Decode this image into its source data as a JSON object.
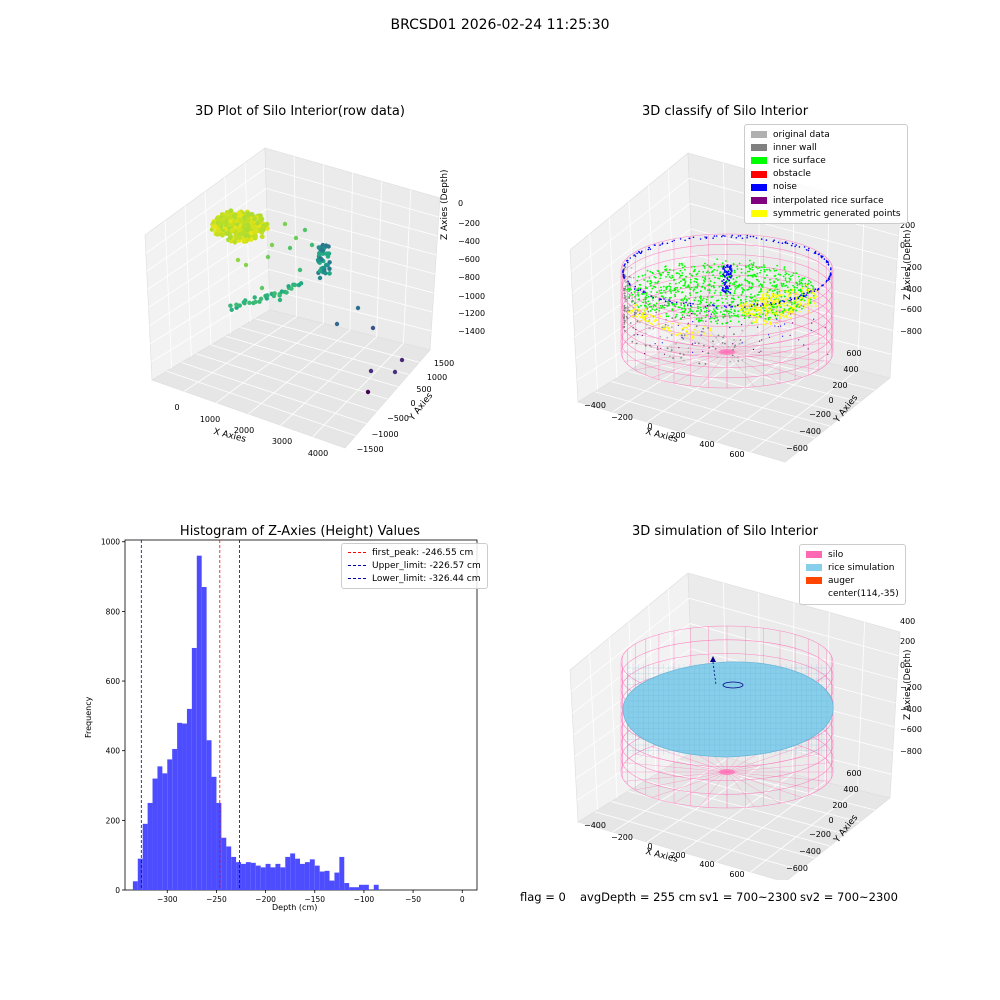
{
  "suptitle": "BRCSD01 2026-02-24 11:25:30",
  "footer": {
    "flag": "flag = 0",
    "avg": "avgDepth = 255 cm",
    "sv1": "sv1 = 700~2300",
    "sv2": "sv2 = 700~2300"
  },
  "colors": {
    "hist_bar": "#4d4dff",
    "peak_line": "#ff0000",
    "limit_line": "#0000aa",
    "silo_wire": "#ff69b4",
    "rice": "#87ceeb"
  },
  "chart_data": [
    {
      "type": "scatter",
      "title": "3D Plot of Silo Interior(row data)",
      "xlabel": "X Axies",
      "ylabel": "Y Axies",
      "zlabel": "Z Axies (Depth)",
      "x_ticks": [
        "0",
        "1000",
        "2000",
        "3000",
        "4000"
      ],
      "y_ticks": [
        "1500",
        "1000",
        "500",
        "0",
        "−500",
        "−1000",
        "−1500"
      ],
      "z_ticks": [
        "0",
        "−200",
        "−400",
        "−600",
        "−800",
        "−1000",
        "−1200",
        "−1400"
      ],
      "grid": true
    },
    {
      "type": "scatter",
      "title": "3D classify of Silo Interior",
      "xlabel": "X Axies",
      "ylabel": "Y Axies",
      "zlabel": "Z Axies (Depth)",
      "x_ticks": [
        "−400",
        "−200",
        "0",
        "200",
        "400",
        "600"
      ],
      "y_ticks": [
        "600",
        "400",
        "200",
        "0",
        "−200",
        "−400",
        "−600"
      ],
      "z_ticks": [
        "200",
        "0",
        "−200",
        "−400",
        "−600",
        "−800"
      ],
      "legend": [
        {
          "label": "original data",
          "color": "#b0b0b0"
        },
        {
          "label": "inner wall",
          "color": "#808080"
        },
        {
          "label": "rice surface",
          "color": "#00ff00"
        },
        {
          "label": "obstacle",
          "color": "#ff0000"
        },
        {
          "label": "noise",
          "color": "#0000ff"
        },
        {
          "label": "interpolated rice surface",
          "color": "#800080"
        },
        {
          "label": "symmetric generated points",
          "color": "#ffff00"
        }
      ],
      "legend_position": "top-right",
      "grid": true
    },
    {
      "type": "bar",
      "title": "Histogram of Z-Axies (Height) Values",
      "xlabel": "Depth (cm)",
      "ylabel": "Frequency",
      "xlim": [
        -343,
        15
      ],
      "ylim": [
        0,
        1005
      ],
      "bin_width": 5,
      "bins_start": -335,
      "values": [
        25,
        90,
        190,
        250,
        320,
        355,
        335,
        375,
        405,
        480,
        478,
        520,
        695,
        960,
        870,
        430,
        325,
        250,
        150,
        125,
        95,
        80,
        75,
        80,
        78,
        70,
        65,
        75,
        65,
        75,
        65,
        95,
        105,
        90,
        75,
        80,
        88,
        70,
        53,
        55,
        27,
        50,
        95,
        20,
        8,
        8,
        15,
        15,
        0,
        15
      ],
      "x_ticks": [
        -300,
        -250,
        -200,
        -150,
        -100,
        -50,
        0
      ],
      "y_ticks": [
        0,
        200,
        400,
        600,
        800,
        1000
      ],
      "lines": [
        {
          "name": "first_peak: -246.55 cm",
          "x": -246.55,
          "color": "#ff0000"
        },
        {
          "name": "Upper_limit: -226.57 cm",
          "x": -226.57,
          "color": "#0000aa"
        },
        {
          "name": "Lower_limit: -326.44 cm",
          "x": -326.44,
          "color": "#0000aa"
        }
      ],
      "legend_position": "top-right"
    },
    {
      "type": "scatter",
      "title": "3D simulation of Silo Interior",
      "xlabel": "X Axies",
      "ylabel": "Y Axies",
      "zlabel": "Z Axies (Depth)",
      "x_ticks": [
        "−400",
        "−200",
        "0",
        "200",
        "400",
        "600"
      ],
      "y_ticks": [
        "600",
        "400",
        "200",
        "0",
        "−200",
        "−400",
        "−600"
      ],
      "z_ticks": [
        "400",
        "200",
        "0",
        "−200",
        "−400",
        "−600",
        "−800"
      ],
      "legend": [
        {
          "label": "silo",
          "color": "#ff69b4"
        },
        {
          "label": "rice simulation",
          "color": "#87ceeb"
        },
        {
          "label": "auger",
          "color": "#ff4500"
        },
        {
          "label": "center(114,-35)",
          "color": ""
        }
      ],
      "legend_position": "top-right",
      "grid": true
    }
  ]
}
